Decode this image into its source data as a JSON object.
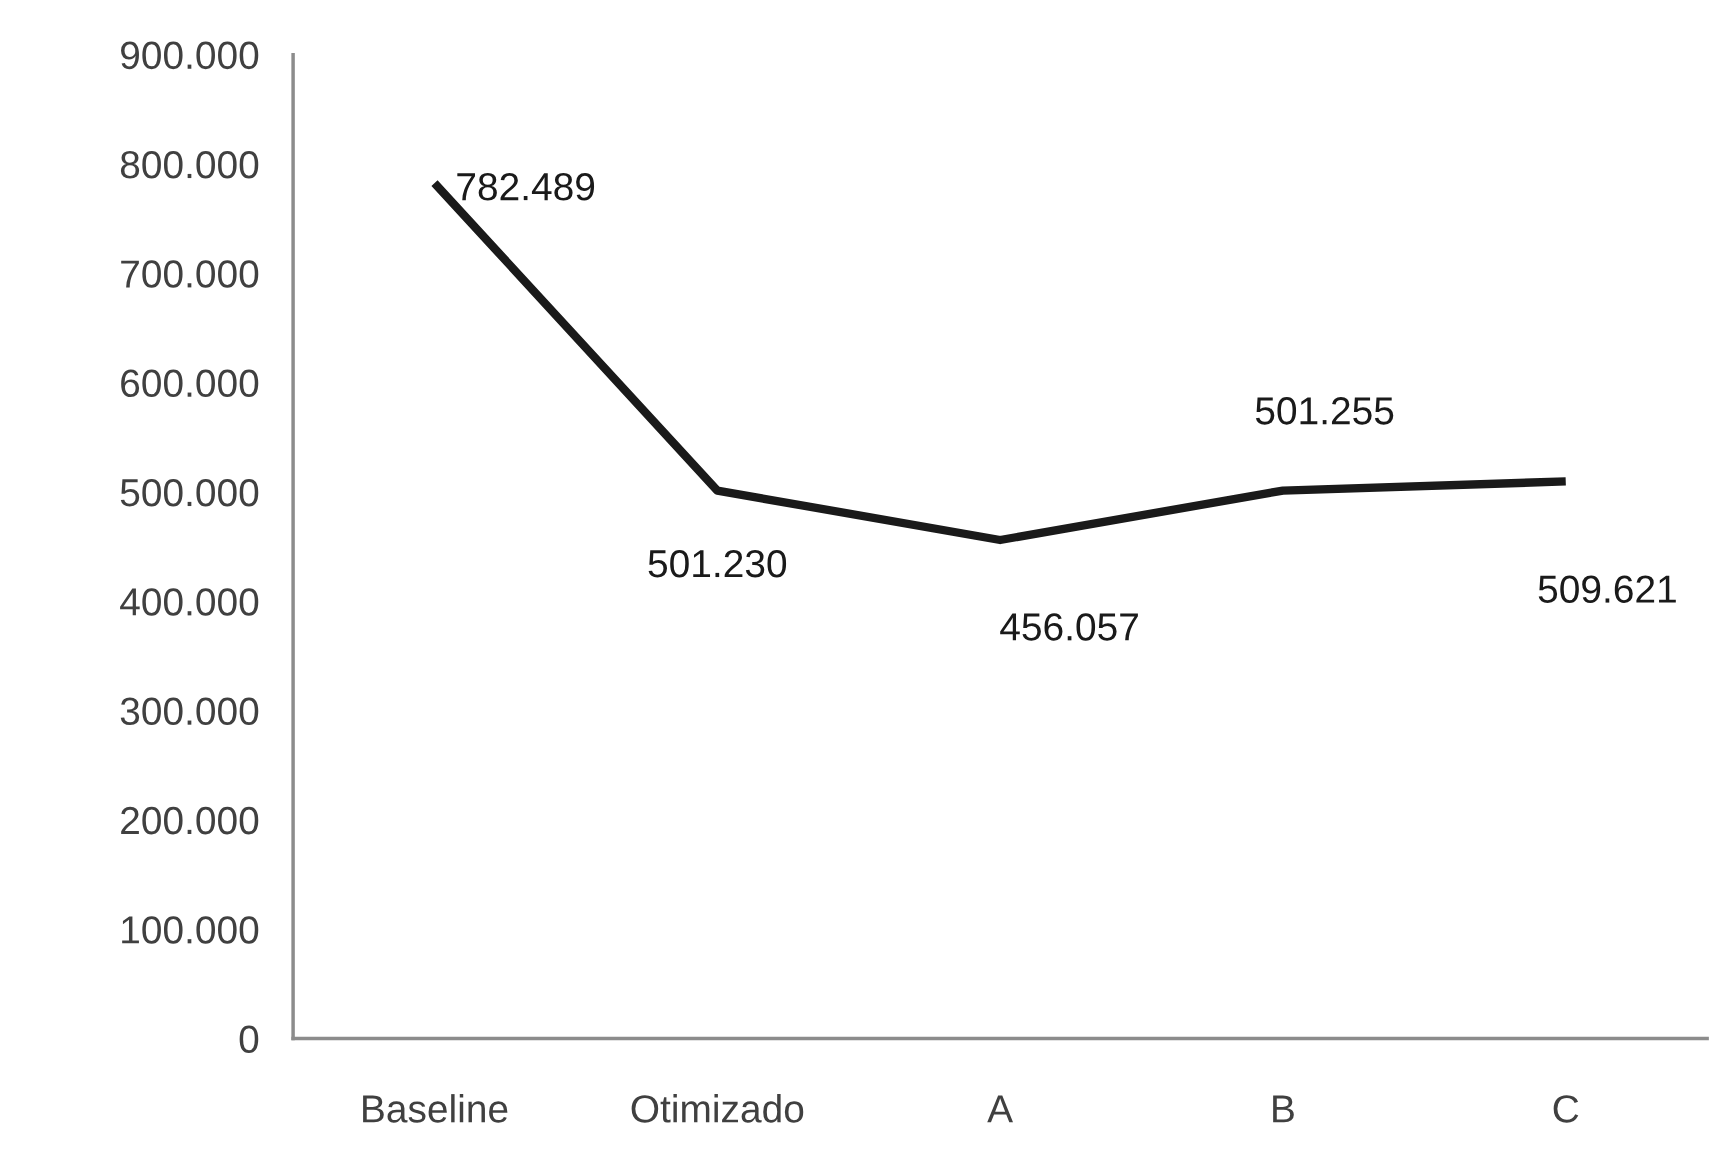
{
  "chart_data": {
    "type": "line",
    "categories": [
      "Baseline",
      "Otimizado",
      "A",
      "B",
      "C"
    ],
    "series": [
      {
        "color": "#1a1a1a",
        "values": [
          782489,
          501230,
          456057,
          501255,
          509621
        ],
        "value_labels": [
          "782.489",
          "501.230",
          "456.057",
          "501.255",
          "509.621"
        ]
      }
    ],
    "ylim": [
      0,
      900000
    ],
    "yticks": [
      {
        "value": 0,
        "label": "0"
      },
      {
        "value": 100000,
        "label": "100.000"
      },
      {
        "value": 200000,
        "label": "200.000"
      },
      {
        "value": 300000,
        "label": "300.000"
      },
      {
        "value": 400000,
        "label": "400.000"
      },
      {
        "value": 500000,
        "label": "500.000"
      },
      {
        "value": 600000,
        "label": "600.000"
      },
      {
        "value": 700000,
        "label": "700.000"
      },
      {
        "value": 800000,
        "label": "800.000"
      },
      {
        "value": 900000,
        "label": "900.000"
      }
    ],
    "grid": false,
    "marker": "none",
    "line_style": "solid"
  }
}
